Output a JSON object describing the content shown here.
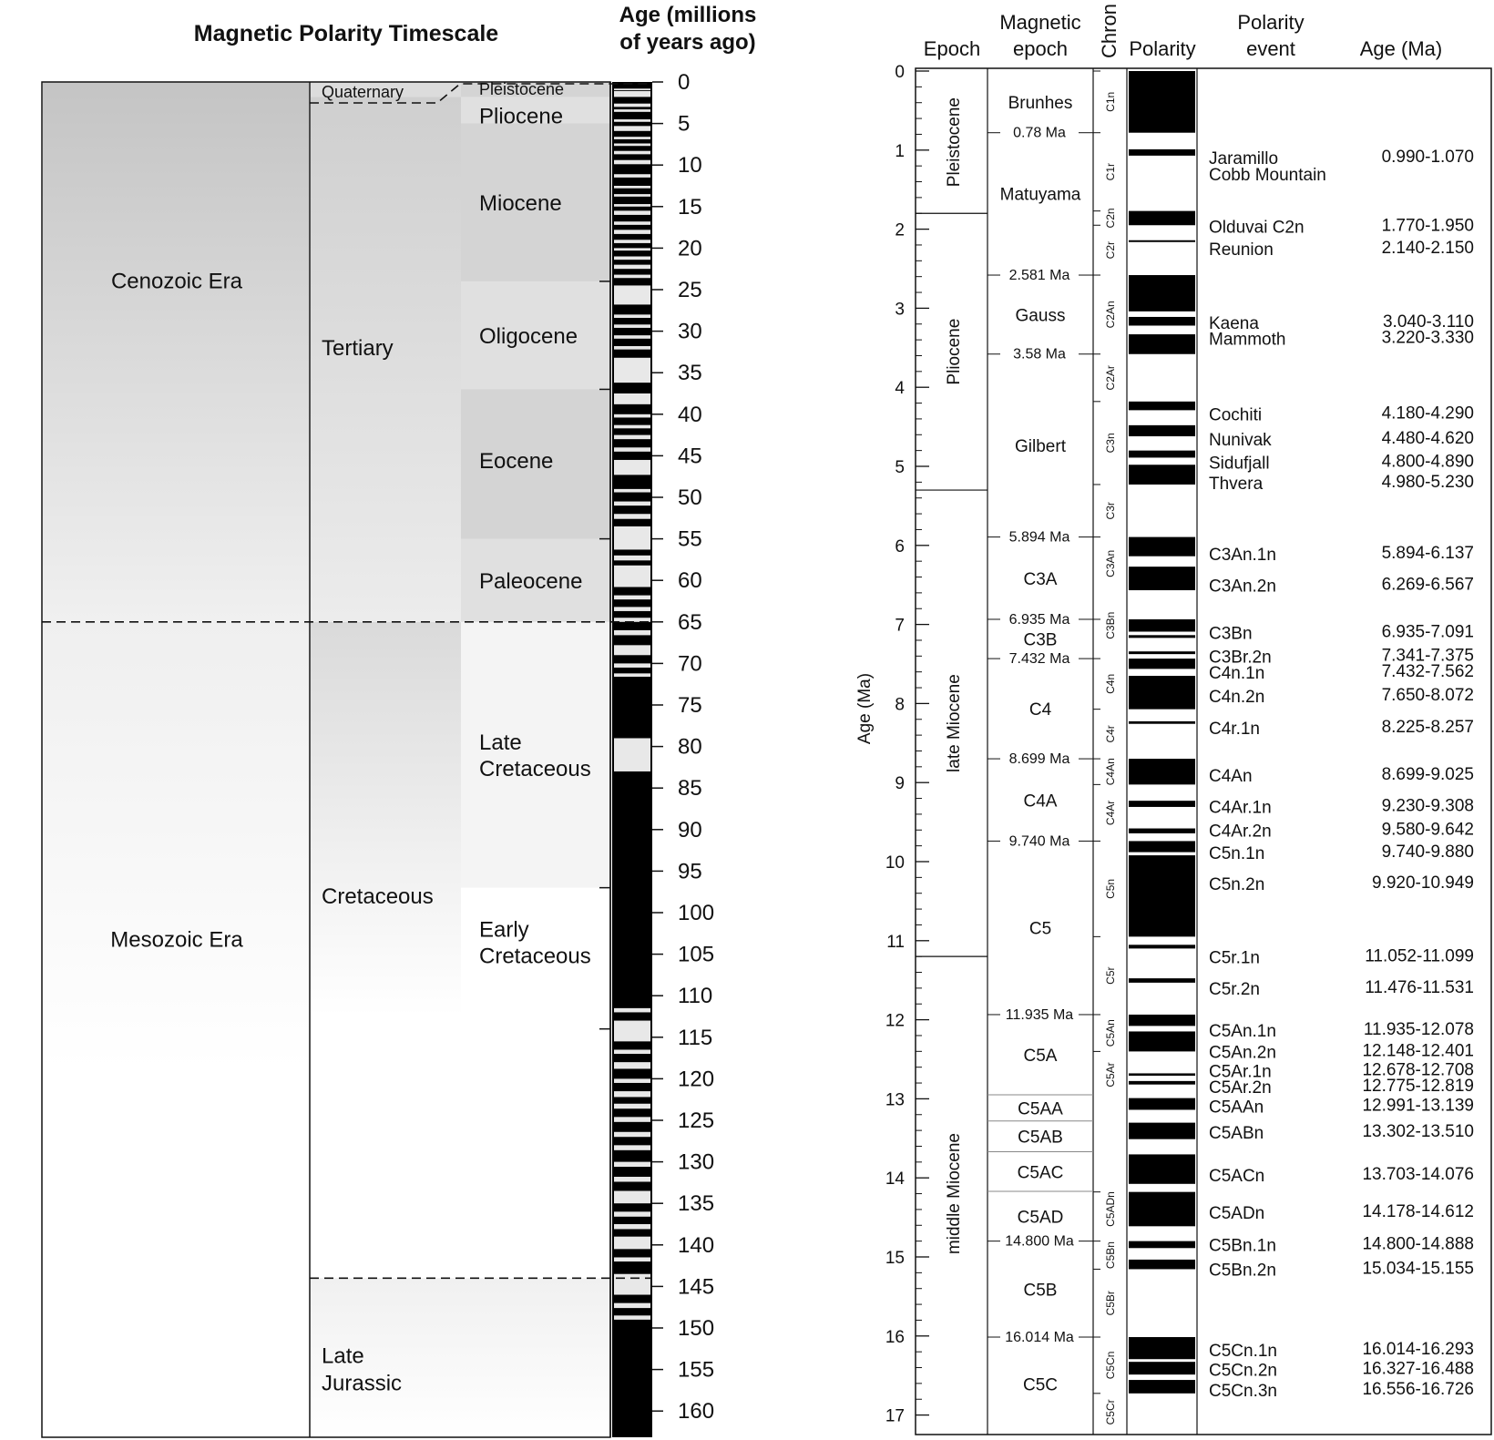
{
  "left": {
    "title": "Magnetic Polarity Timescale",
    "age_header": [
      "Age (millions",
      "of years ago)"
    ],
    "eras": [
      {
        "label": "Cenozoic Era",
        "from": 0,
        "to": 65
      },
      {
        "label": "Mesozoic Era",
        "from": 65,
        "to": 163
      }
    ],
    "periods": [
      {
        "label": [
          "Quaternary"
        ],
        "from": 0,
        "to": 1.8
      },
      {
        "label": [
          "Tertiary"
        ],
        "from": 1.8,
        "to": 65
      },
      {
        "label": [
          "Cretaceous"
        ],
        "from": 65,
        "to": 144
      },
      {
        "label": [
          "Late",
          "Jurassic"
        ],
        "from": 144,
        "to": 163
      }
    ],
    "epochs": [
      {
        "label": [
          "Pleistocene"
        ],
        "from": 0,
        "to": 1.8
      },
      {
        "label": [
          "Pliocene"
        ],
        "from": 1.8,
        "to": 5
      },
      {
        "label": [
          "Miocene"
        ],
        "from": 5,
        "to": 24
      },
      {
        "label": [
          "Oligocene"
        ],
        "from": 24,
        "to": 37
      },
      {
        "label": [
          "Eocene"
        ],
        "from": 37,
        "to": 55
      },
      {
        "label": [
          "Paleocene"
        ],
        "from": 55,
        "to": 65
      },
      {
        "label": [
          "Late",
          "Cretaceous"
        ],
        "from": 65,
        "to": 97
      },
      {
        "label": [
          "Early",
          "Cretaceous"
        ],
        "from": 97,
        "to": 144
      }
    ],
    "axis": {
      "min": 0,
      "max": 163,
      "ticks": [
        0,
        5,
        10,
        15,
        20,
        25,
        30,
        35,
        40,
        45,
        50,
        55,
        60,
        65,
        70,
        75,
        80,
        85,
        90,
        95,
        100,
        105,
        110,
        115,
        120,
        125,
        130,
        135,
        140,
        145,
        150,
        155,
        160
      ]
    },
    "reversed_intervals": [
      [
        0.8,
        1.0
      ],
      [
        1.1,
        1.8
      ],
      [
        2.6,
        3.0
      ],
      [
        3.3,
        3.6
      ],
      [
        4.5,
        4.8
      ],
      [
        5.3,
        5.9
      ],
      [
        6.6,
        6.9
      ],
      [
        7.4,
        7.7
      ],
      [
        8.3,
        8.7
      ],
      [
        9.4,
        9.9
      ],
      [
        11.1,
        11.5
      ],
      [
        12.5,
        12.8
      ],
      [
        13.5,
        13.8
      ],
      [
        14.7,
        15.0
      ],
      [
        15.5,
        16.0
      ],
      [
        16.8,
        17.2
      ],
      [
        17.8,
        18.3
      ],
      [
        19.0,
        19.4
      ],
      [
        20.0,
        20.3
      ],
      [
        21.0,
        21.4
      ],
      [
        22.0,
        22.5
      ],
      [
        23.2,
        23.6
      ],
      [
        24.5,
        26.8
      ],
      [
        28.0,
        28.4
      ],
      [
        29.2,
        29.6
      ],
      [
        30.5,
        30.9
      ],
      [
        31.8,
        32.2
      ],
      [
        33.2,
        36.2
      ],
      [
        37.5,
        38.8
      ],
      [
        40.0,
        40.4
      ],
      [
        41.3,
        41.7
      ],
      [
        42.5,
        43.0
      ],
      [
        44.0,
        44.5
      ],
      [
        45.5,
        47.3
      ],
      [
        49.0,
        49.4
      ],
      [
        50.5,
        51.0
      ],
      [
        52.0,
        52.6
      ],
      [
        53.5,
        56.3
      ],
      [
        57.0,
        57.6
      ],
      [
        58.2,
        60.8
      ],
      [
        61.8,
        62.3
      ],
      [
        63.2,
        63.7
      ],
      [
        64.5,
        65.0
      ],
      [
        66.0,
        66.6
      ],
      [
        67.8,
        69.0
      ],
      [
        70.0,
        70.5
      ],
      [
        71.2,
        71.6
      ],
      [
        79.0,
        83.0
      ],
      [
        111.5,
        112.0
      ],
      [
        113.0,
        115.5
      ],
      [
        116.5,
        117.0
      ],
      [
        118.0,
        118.8
      ],
      [
        120.0,
        120.5
      ],
      [
        121.5,
        122.2
      ],
      [
        123.0,
        123.6
      ],
      [
        124.6,
        125.2
      ],
      [
        126.4,
        127.0
      ],
      [
        128.0,
        128.6
      ],
      [
        130.0,
        130.6
      ],
      [
        131.8,
        132.4
      ],
      [
        133.5,
        135.0
      ],
      [
        136.0,
        136.6
      ],
      [
        137.5,
        138.1
      ],
      [
        139.0,
        140.5
      ],
      [
        141.5,
        142.0
      ],
      [
        143.5,
        146.0
      ],
      [
        147.0,
        147.6
      ],
      [
        148.5,
        149.0
      ]
    ]
  },
  "right": {
    "headers": {
      "epoch": "Epoch",
      "magnetic_epoch": [
        "Magnetic",
        "epoch"
      ],
      "chron": "Chron",
      "polarity": "Polarity",
      "polarity_event": [
        "Polarity",
        "event"
      ],
      "age": "Age (Ma)"
    },
    "ylabel": "Age (Ma)",
    "axis": {
      "min": 0,
      "max": 17.2,
      "ticks": [
        0,
        1,
        2,
        3,
        4,
        5,
        6,
        7,
        8,
        9,
        10,
        11,
        12,
        13,
        14,
        15,
        16,
        17
      ]
    },
    "epochs": [
      {
        "label": "Pleistocene",
        "from": 0,
        "to": 1.8
      },
      {
        "label": "Pliocene",
        "from": 1.8,
        "to": 5.3
      },
      {
        "label": "late Miocene",
        "from": 5.3,
        "to": 11.2
      },
      {
        "label": "middle Miocene",
        "from": 11.2,
        "to": 17.2
      }
    ],
    "magnetic_epochs": [
      {
        "label": "Brunhes",
        "from": 0,
        "to": 0.78
      },
      {
        "label": "Matuyama",
        "from": 0.78,
        "to": 2.581
      },
      {
        "label": "Gauss",
        "from": 2.581,
        "to": 3.58
      },
      {
        "label": "Gilbert",
        "from": 3.58,
        "to": 5.894
      },
      {
        "label": "C3A",
        "from": 5.894,
        "to": 6.935
      },
      {
        "label": "C3B",
        "from": 6.935,
        "to": 7.432
      },
      {
        "label": "C4",
        "from": 7.432,
        "to": 8.699
      },
      {
        "label": "C4A",
        "from": 8.699,
        "to": 9.74
      },
      {
        "label": "C5",
        "from": 9.74,
        "to": 11.935
      },
      {
        "label": "C5A",
        "from": 11.935,
        "to": 12.95
      },
      {
        "label": "C5AA",
        "from": 12.95,
        "to": 13.28
      },
      {
        "label": "C5AB",
        "from": 13.28,
        "to": 13.67
      },
      {
        "label": "C5AC",
        "from": 13.67,
        "to": 14.17
      },
      {
        "label": "C5AD",
        "from": 14.17,
        "to": 14.8
      },
      {
        "label": "C5B",
        "from": 14.8,
        "to": 16.014
      },
      {
        "label": "C5C",
        "from": 16.014,
        "to": 17.2
      }
    ],
    "boundary_labels": [
      {
        "label": "0.78 Ma",
        "age": 0.78
      },
      {
        "label": "2.581 Ma",
        "age": 2.581
      },
      {
        "label": "3.58 Ma",
        "age": 3.58
      },
      {
        "label": "5.894 Ma",
        "age": 5.894
      },
      {
        "label": "6.935 Ma",
        "age": 6.935
      },
      {
        "label": "7.432 Ma",
        "age": 7.432
      },
      {
        "label": "8.699 Ma",
        "age": 8.699
      },
      {
        "label": "9.740 Ma",
        "age": 9.74
      },
      {
        "label": "11.935 Ma",
        "age": 11.935
      },
      {
        "label": "14.800 Ma",
        "age": 14.8
      },
      {
        "label": "16.014 Ma",
        "age": 16.014
      }
    ],
    "chrons": [
      {
        "label": "C1n",
        "from": 0,
        "to": 0.78
      },
      {
        "label": "C1r",
        "from": 0.78,
        "to": 1.77
      },
      {
        "label": "C2n",
        "from": 1.77,
        "to": 1.95
      },
      {
        "label": "C2r",
        "from": 1.95,
        "to": 2.581
      },
      {
        "label": "C2An",
        "from": 2.581,
        "to": 3.58
      },
      {
        "label": "C2Ar",
        "from": 3.58,
        "to": 4.18
      },
      {
        "label": "C3n",
        "from": 4.18,
        "to": 5.23
      },
      {
        "label": "C3r",
        "from": 5.23,
        "to": 5.894
      },
      {
        "label": "C3An",
        "from": 5.894,
        "to": 6.567
      },
      {
        "label": "C3Bn",
        "from": 6.935,
        "to": 7.091
      },
      {
        "label": "C4n",
        "from": 7.432,
        "to": 8.072
      },
      {
        "label": "C4r",
        "from": 8.072,
        "to": 8.699
      },
      {
        "label": "C4An",
        "from": 8.699,
        "to": 9.025
      },
      {
        "label": "C4Ar",
        "from": 9.025,
        "to": 9.74
      },
      {
        "label": "C5n",
        "from": 9.74,
        "to": 10.949
      },
      {
        "label": "C5r",
        "from": 10.949,
        "to": 11.935
      },
      {
        "label": "C5An",
        "from": 11.935,
        "to": 12.401
      },
      {
        "label": "C5Ar",
        "from": 12.401,
        "to": 12.991
      },
      {
        "label": "C5ADn",
        "from": 14.178,
        "to": 14.612
      },
      {
        "label": "C5Bn",
        "from": 14.8,
        "to": 15.155
      },
      {
        "label": "C5Br",
        "from": 15.155,
        "to": 16.014
      },
      {
        "label": "C5Cn",
        "from": 16.014,
        "to": 16.726
      },
      {
        "label": "C5Cr",
        "from": 16.726,
        "to": 17.2
      }
    ],
    "normal_intervals": [
      [
        0,
        0.78
      ],
      [
        0.99,
        1.07
      ],
      [
        1.77,
        1.95
      ],
      [
        2.14,
        2.15
      ],
      [
        2.581,
        3.04
      ],
      [
        3.11,
        3.22
      ],
      [
        3.33,
        3.58
      ],
      [
        4.18,
        4.29
      ],
      [
        4.48,
        4.62
      ],
      [
        4.8,
        4.89
      ],
      [
        4.98,
        5.23
      ],
      [
        5.894,
        6.137
      ],
      [
        6.269,
        6.567
      ],
      [
        6.935,
        7.091
      ],
      [
        7.135,
        7.17
      ],
      [
        7.341,
        7.375
      ],
      [
        7.432,
        7.562
      ],
      [
        7.65,
        8.072
      ],
      [
        8.225,
        8.257
      ],
      [
        8.699,
        9.025
      ],
      [
        9.23,
        9.308
      ],
      [
        9.58,
        9.642
      ],
      [
        9.74,
        9.88
      ],
      [
        9.92,
        10.949
      ],
      [
        11.052,
        11.099
      ],
      [
        11.476,
        11.531
      ],
      [
        11.935,
        12.078
      ],
      [
        12.148,
        12.401
      ],
      [
        12.678,
        12.708
      ],
      [
        12.775,
        12.819
      ],
      [
        12.991,
        13.139
      ],
      [
        13.302,
        13.51
      ],
      [
        13.703,
        14.076
      ],
      [
        14.178,
        14.612
      ],
      [
        14.8,
        14.888
      ],
      [
        15.034,
        15.155
      ],
      [
        16.014,
        16.293
      ],
      [
        16.327,
        16.488
      ],
      [
        16.556,
        16.726
      ]
    ],
    "events": [
      {
        "name": "Jaramillo",
        "range": "0.990-1.070",
        "age": 0.99
      },
      {
        "name": "Cobb Mountain",
        "range": "",
        "age": 1.2
      },
      {
        "name": "Olduvai C2n",
        "range": "1.770-1.950",
        "age": 1.86
      },
      {
        "name": "Reunion",
        "range": "2.140-2.150",
        "age": 2.145
      },
      {
        "name": "Kaena",
        "range": "3.040-3.110",
        "age": 3.075
      },
      {
        "name": "Mammoth",
        "range": "3.220-3.330",
        "age": 3.275
      },
      {
        "name": "Cochiti",
        "range": "4.180-4.290",
        "age": 4.235
      },
      {
        "name": "Nunivak",
        "range": "4.480-4.620",
        "age": 4.55
      },
      {
        "name": "Sidufjall",
        "range": "4.800-4.890",
        "age": 4.845
      },
      {
        "name": "Thvera",
        "range": "4.980-5.230",
        "age": 5.105
      },
      {
        "name": "C3An.1n",
        "range": "5.894-6.137",
        "age": 6.0
      },
      {
        "name": "C3An.2n",
        "range": "6.269-6.567",
        "age": 6.4
      },
      {
        "name": "C3Bn",
        "range": "6.935-7.091",
        "age": 7.0
      },
      {
        "name": "C3Br.2n",
        "range": "7.341-7.375",
        "age": 7.3
      },
      {
        "name": "C4n.1n",
        "range": "7.432-7.562",
        "age": 7.5
      },
      {
        "name": "C4n.2n",
        "range": "7.650-8.072",
        "age": 7.8
      },
      {
        "name": "C4r.1n",
        "range": "8.225-8.257",
        "age": 8.2
      },
      {
        "name": "C4An",
        "range": "8.699-9.025",
        "age": 8.8
      },
      {
        "name": "C4Ar.1n",
        "range": "9.230-9.308",
        "age": 9.2
      },
      {
        "name": "C4Ar.2n",
        "range": "9.580-9.642",
        "age": 9.5
      },
      {
        "name": "C5n.1n",
        "range": "9.740-9.880",
        "age": 9.78
      },
      {
        "name": "C5n.2n",
        "range": "9.920-10.949",
        "age": 10.17
      },
      {
        "name": "C5r.1n",
        "range": "11.052-11.099",
        "age": 11.1
      },
      {
        "name": "C5r.2n",
        "range": "11.476-11.531",
        "age": 11.5
      },
      {
        "name": "C5An.1n",
        "range": "11.935-12.078",
        "age": 12.03
      },
      {
        "name": "C5An.2n",
        "range": "12.148-12.401",
        "age": 12.3
      },
      {
        "name": "C5Ar.1n",
        "range": "12.678-12.708",
        "age": 12.54
      },
      {
        "name": "C5Ar.2n",
        "range": "12.775-12.819",
        "age": 12.74
      },
      {
        "name": "C5AAn",
        "range": "12.991-13.139",
        "age": 12.99
      },
      {
        "name": "C5ABn",
        "range": "13.302-13.510",
        "age": 13.32
      },
      {
        "name": "C5ACn",
        "range": "13.703-14.076",
        "age": 13.86
      },
      {
        "name": "C5ADn",
        "range": "14.178-14.612",
        "age": 14.33
      },
      {
        "name": "C5Bn.1n",
        "range": "14.800-14.888",
        "age": 14.74
      },
      {
        "name": "C5Bn.2n",
        "range": "15.034-15.155",
        "age": 15.05
      },
      {
        "name": "C5Cn.1n",
        "range": "16.014-16.293",
        "age": 16.07
      },
      {
        "name": "C5Cn.2n",
        "range": "16.327-16.488",
        "age": 16.32
      },
      {
        "name": "C5Cn.3n",
        "range": "16.556-16.726",
        "age": 16.58
      }
    ]
  },
  "colors": {
    "ink": "#111111",
    "normal": "#000000",
    "reversed": "#e8e8e8",
    "shade": "#c8c8c8"
  }
}
